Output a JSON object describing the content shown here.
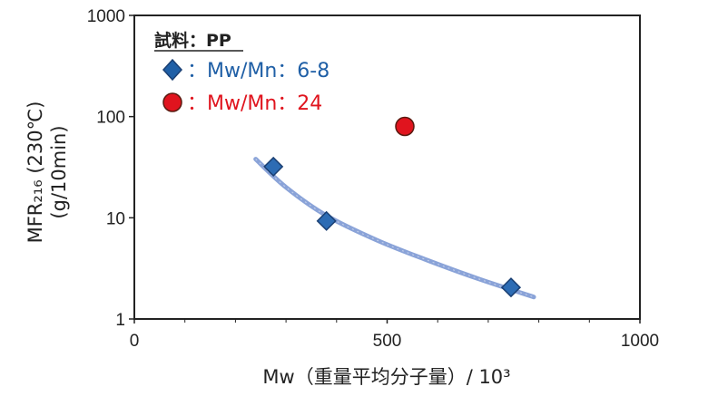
{
  "chart_data": {
    "type": "scatter",
    "xlabel": "Mw（重量平均分子量）/ 10³",
    "ylabel_line1": "MFR₂₁₆ (230℃)",
    "ylabel_line2": "(g/10min)",
    "xlim": [
      0,
      1000
    ],
    "ylim": [
      1,
      1000
    ],
    "y_scale": "log",
    "x_ticks": [
      0,
      500,
      1000
    ],
    "x_tick_labels": [
      "0",
      "500",
      "1000"
    ],
    "y_ticks": [
      1,
      10,
      100,
      1000
    ],
    "y_tick_labels": [
      "1",
      "10",
      "100",
      "1000"
    ],
    "grid": false,
    "legend": {
      "title": "試料：PP",
      "placement": "top-left",
      "entries": [
        {
          "label": "：Mw/Mn：6-8",
          "marker": "diamond",
          "color": "#1f5fa6"
        },
        {
          "label": "：Mw/Mn：24",
          "marker": "circle",
          "color": "#e0141e"
        }
      ]
    },
    "series": [
      {
        "marker": "diamond",
        "color": "#2d6cb4",
        "points": [
          {
            "x": 275,
            "y": 32
          },
          {
            "x": 380,
            "y": 9.3
          },
          {
            "x": 745,
            "y": 2.05
          }
        ]
      },
      {
        "marker": "circle",
        "color": "#e0141e",
        "points": [
          {
            "x": 535,
            "y": 80
          }
        ]
      }
    ],
    "trend_line": {
      "color": "#8aa3d8",
      "points": [
        {
          "x": 240,
          "y": 38
        },
        {
          "x": 300,
          "y": 20
        },
        {
          "x": 380,
          "y": 10.5
        },
        {
          "x": 480,
          "y": 6
        },
        {
          "x": 580,
          "y": 3.8
        },
        {
          "x": 680,
          "y": 2.5
        },
        {
          "x": 790,
          "y": 1.65
        }
      ]
    }
  }
}
